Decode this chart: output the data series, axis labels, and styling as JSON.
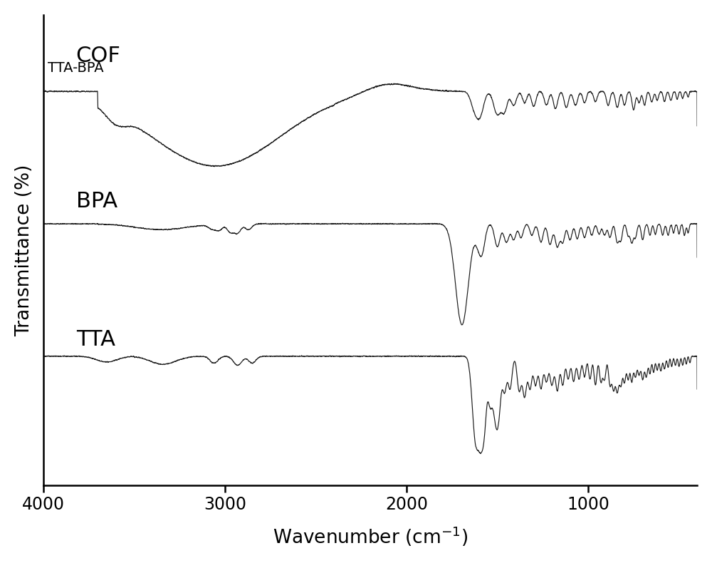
{
  "title": "",
  "xlabel": "Wavenumber (cm$^{-1}$)",
  "ylabel": "Transmittance (%)",
  "xlim": [
    4000,
    400
  ],
  "background_color": "#ffffff",
  "line_color": "#1a1a1a",
  "labels": {
    "cof": "COF",
    "cof_sub": "TTA-BPA",
    "bpa": "BPA",
    "tta": "TTA"
  },
  "xticks": [
    4000,
    3000,
    2000,
    1000
  ],
  "offsets": [
    0.68,
    0.34,
    0.0
  ],
  "scale": 0.3
}
